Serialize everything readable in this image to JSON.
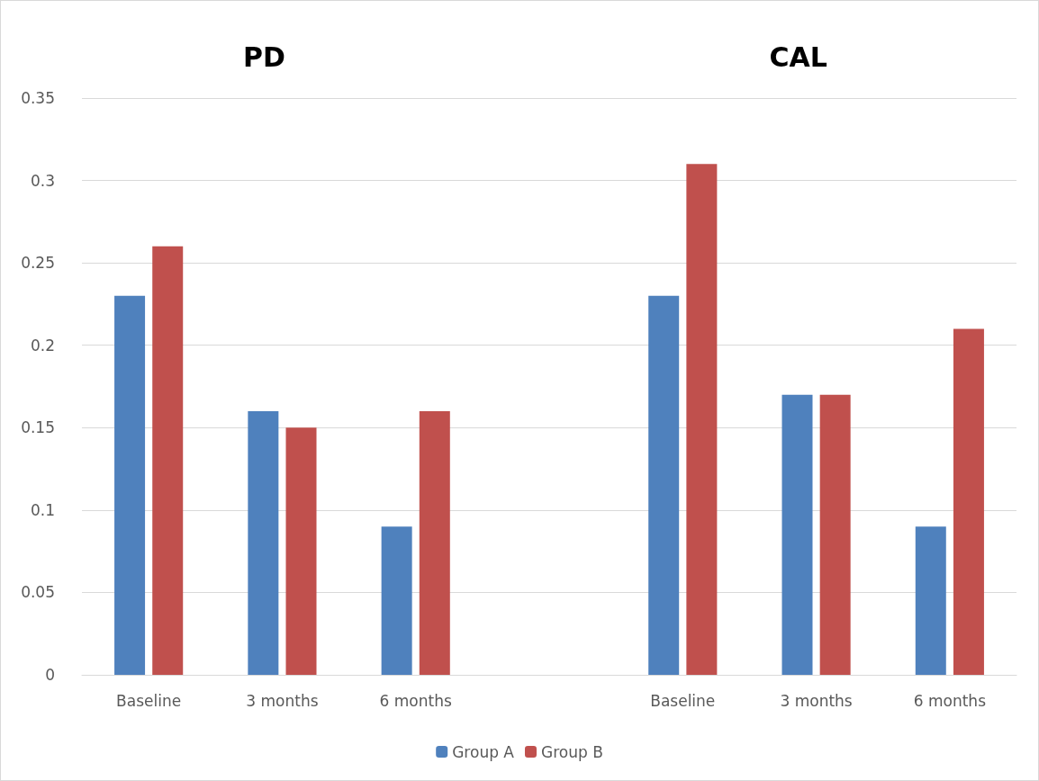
{
  "chart_data": {
    "type": "bar",
    "annotations": [
      "PD",
      "CAL"
    ],
    "categories": [
      "Baseline",
      "3 months",
      "6 months",
      null,
      "Baseline",
      "3 months",
      "6 months"
    ],
    "series": [
      {
        "name": "Group A",
        "color": "#4f81bd",
        "values": [
          0.23,
          0.16,
          0.09,
          null,
          0.23,
          0.17,
          0.09
        ]
      },
      {
        "name": "Group B",
        "color": "#c0504d",
        "values": [
          0.26,
          0.15,
          0.16,
          null,
          0.31,
          0.17,
          0.21
        ]
      }
    ],
    "ylim": [
      0,
      0.35
    ],
    "yticks": [
      0,
      0.05,
      0.1,
      0.15,
      0.2,
      0.25,
      0.3,
      0.35
    ],
    "grid": "y",
    "legend": "bottom"
  }
}
